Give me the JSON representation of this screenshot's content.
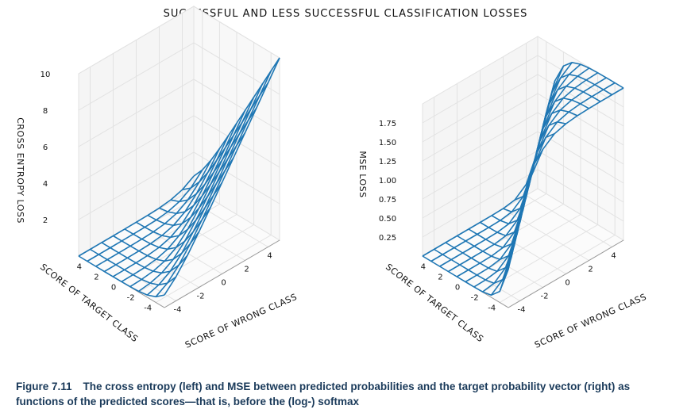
{
  "figure_title": "SUCCESSFUL AND LESS SUCCESSFUL CLASSIFICATION LOSSES",
  "caption": {
    "label": "Figure 7.11",
    "text": "The cross entropy (left) and MSE between predicted probabilities and the target probability vector (right) as functions of the predicted scores—that is, before the (log-) softmax"
  },
  "colors": {
    "surface": "#1f77b4",
    "grid": "#e2e2e2",
    "pane": "#f5f5f5",
    "text": "#111111",
    "caption": "#1a3a5a"
  },
  "chart_data": [
    {
      "type": "surface3d",
      "title": "",
      "function": "cross_entropy",
      "xlabel": "SCORE OF WRONG CLASS",
      "ylabel": "SCORE OF TARGET CLASS",
      "zlabel": "CROSS ENTROPY LOSS",
      "x_grid": [
        -5,
        -4,
        -3,
        -2,
        -1,
        0,
        1,
        2,
        3,
        4,
        5
      ],
      "y_grid": [
        -5,
        -4,
        -3,
        -2,
        -1,
        0,
        1,
        2,
        3,
        4,
        5
      ],
      "xlim": [
        -5,
        5
      ],
      "ylim": [
        -5,
        5
      ],
      "zlim": [
        0,
        10
      ],
      "x_ticks": [
        -4,
        -2,
        0,
        2,
        4
      ],
      "y_ticks": [
        -4,
        -2,
        0,
        2,
        4
      ],
      "z_ticks": [
        2,
        4,
        6,
        8,
        10
      ]
    },
    {
      "type": "surface3d",
      "title": "",
      "function": "mse",
      "xlabel": "SCORE OF WRONG CLASS",
      "ylabel": "SCORE OF TARGET CLASS",
      "zlabel": "MSE LOSS",
      "x_grid": [
        -5,
        -4,
        -3,
        -2,
        -1,
        0,
        1,
        2,
        3,
        4,
        5
      ],
      "y_grid": [
        -5,
        -4,
        -3,
        -2,
        -1,
        0,
        1,
        2,
        3,
        4,
        5
      ],
      "xlim": [
        -5,
        5
      ],
      "ylim": [
        -5,
        5
      ],
      "zlim": [
        0,
        2
      ],
      "x_ticks": [
        -4,
        -2,
        0,
        2,
        4
      ],
      "y_ticks": [
        -4,
        -2,
        0,
        2,
        4
      ],
      "z_ticks": [
        0.25,
        0.5,
        0.75,
        1.0,
        1.25,
        1.5,
        1.75
      ],
      "z_tick_labels": [
        "0.25",
        "0.50",
        "0.75",
        "1.00",
        "1.25",
        "1.50",
        "1.75"
      ]
    }
  ]
}
